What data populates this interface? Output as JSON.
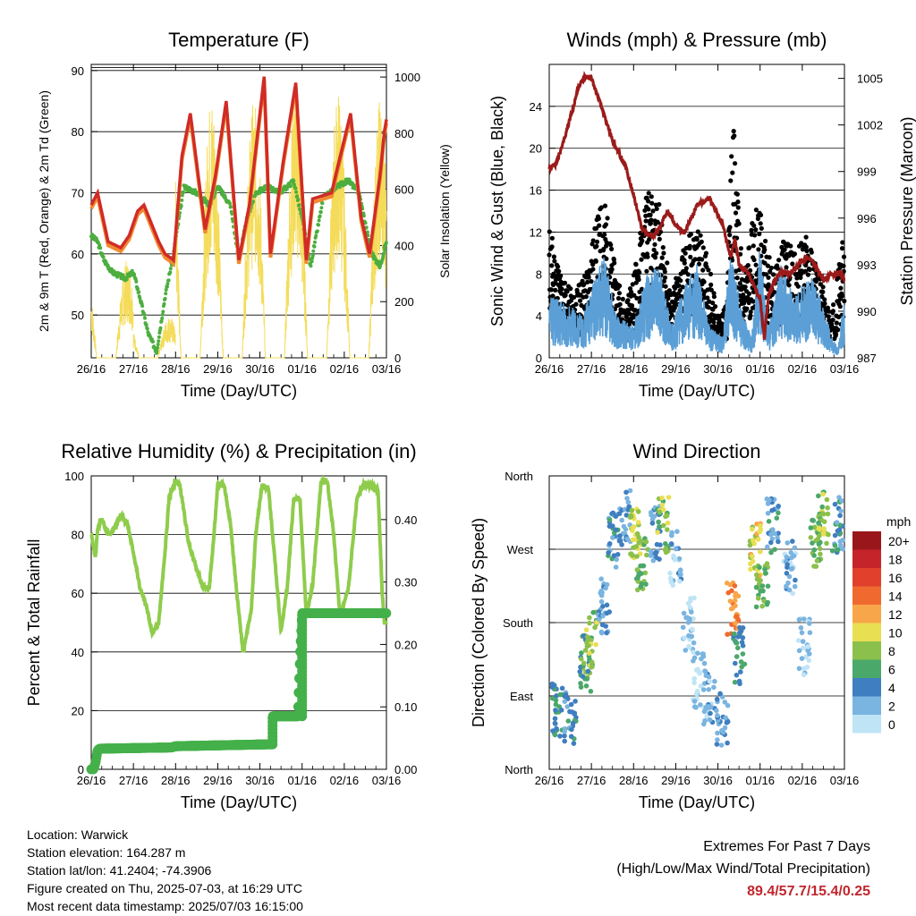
{
  "info": {
    "location": "Location: Warwick",
    "elevation": "Station elevation: 164.287 m",
    "latlon": "Station lat/lon: 41.2404; -74.3906",
    "created": "Figure created on Thu, 2025-07-03, at 16:29 UTC",
    "recent": "Most recent data timestamp: 2025/07/03 16:15:00"
  },
  "extremes": {
    "title": "Extremes For Past 7 Days",
    "subtitle": "(High/Low/Max Wind/Total Precipitation)",
    "values": "89.4/57.7/15.4/0.25",
    "color": "#c0262c"
  },
  "chart_data": [
    {
      "type": "line",
      "title": "Temperature (F)",
      "xlabel": "Time (Day/UTC)",
      "ylabel": "2m & 9m T (Red, Orange) & 2m Td (Green)",
      "y2label": "Solar Insolation (Yellow)",
      "x_ticks": [
        "26/16",
        "27/16",
        "28/16",
        "29/16",
        "30/16",
        "01/16",
        "02/16",
        "03/16"
      ],
      "xlim": [
        0,
        7
      ],
      "ylim": [
        43,
        91
      ],
      "y_ticks": [
        50,
        60,
        70,
        80,
        90
      ],
      "y2lim": [
        0,
        1045
      ],
      "y2_ticks": [
        0,
        200,
        400,
        600,
        800,
        1000
      ],
      "grid": true,
      "colors": {
        "temp": "#d12b26",
        "temp9m": "#f08a30",
        "dewpoint": "#4cae3f",
        "solar": "#f4dc5a"
      },
      "series": [
        {
          "name": "2m T",
          "x": [
            0,
            0.15,
            0.4,
            0.7,
            0.9,
            1.1,
            1.25,
            1.6,
            1.75,
            1.95,
            2.15,
            2.35,
            2.7,
            2.95,
            3.2,
            3.5,
            3.75,
            4.1,
            4.25,
            4.55,
            4.85,
            5.1,
            5.25,
            5.7,
            5.8,
            6.15,
            6.4,
            6.6,
            6.85,
            6.95,
            7.0
          ],
          "values": [
            68,
            70,
            62,
            61,
            63,
            67,
            68,
            62,
            60,
            59,
            76,
            83,
            64,
            73,
            85,
            59,
            68,
            89,
            60,
            75,
            88,
            59,
            69,
            70,
            73,
            83,
            66,
            60,
            73,
            80,
            82
          ]
        },
        {
          "name": "2m Td",
          "x": [
            0,
            0.15,
            0.3,
            0.5,
            0.8,
            1.0,
            1.15,
            1.35,
            1.55,
            1.75,
            1.95,
            2.2,
            2.5,
            2.8,
            3.0,
            3.3,
            3.5,
            3.7,
            3.9,
            4.2,
            4.45,
            4.65,
            4.8,
            5.05,
            5.2,
            5.5,
            5.8,
            6.1,
            6.35,
            6.65,
            6.85,
            7.0
          ],
          "values": [
            63,
            62,
            59,
            57,
            56,
            57,
            53,
            47,
            44,
            53,
            60,
            71,
            70,
            68,
            71,
            68,
            59,
            66,
            70,
            71,
            70,
            71,
            72,
            64,
            58,
            69,
            71,
            72,
            70,
            60,
            58,
            62
          ]
        },
        {
          "name": "Solar Insolation",
          "axis": "y2",
          "days": [
            0,
            1,
            2,
            3,
            4,
            5,
            6
          ],
          "peaks": [
            350,
            150,
            950,
            920,
            1000,
            960,
            930
          ]
        }
      ]
    },
    {
      "type": "scatter",
      "title": "Winds (mph) & Pressure (mb)",
      "xlabel": "Time (Day/UTC)",
      "ylabel": "Sonic Wind & Gust (Blue, Black)",
      "y2label": "Station Pressure (Maroon)",
      "x_ticks": [
        "26/16",
        "27/16",
        "28/16",
        "29/16",
        "30/16",
        "01/16",
        "02/16",
        "03/16"
      ],
      "xlim": [
        0,
        7
      ],
      "ylim": [
        0,
        28
      ],
      "y_ticks": [
        0,
        4,
        8,
        12,
        16,
        20,
        24
      ],
      "y2lim": [
        987,
        1005.9
      ],
      "y2_ticks": [
        987,
        990,
        993,
        996,
        999,
        1002,
        1005
      ],
      "grid": true,
      "colors": {
        "wind": "#5b9fd6",
        "gust": "#000000",
        "pressure": "#9b1b1b"
      },
      "series": [
        {
          "name": "Wind (blue)",
          "envelope_x": [
            0,
            0.5,
            0.8,
            1.0,
            1.3,
            1.6,
            2.0,
            2.3,
            2.6,
            2.9,
            3.2,
            3.5,
            3.8,
            4.1,
            4.3,
            4.6,
            4.8,
            5.0,
            5.2,
            5.5,
            5.8,
            6.0,
            6.2,
            6.5,
            6.7,
            6.85,
            7.0
          ],
          "values": [
            6,
            5,
            4,
            7,
            10,
            4,
            3,
            8,
            9,
            3,
            7,
            9,
            3,
            2,
            10,
            4,
            2,
            11,
            3,
            9,
            6,
            7,
            8,
            5,
            2,
            1,
            6
          ]
        },
        {
          "name": "Gust (black)",
          "envelope_x": [
            0,
            0.3,
            0.6,
            0.9,
            1.1,
            1.3,
            1.5,
            1.8,
            2.0,
            2.3,
            2.6,
            2.9,
            3.2,
            3.5,
            3.8,
            4.0,
            4.2,
            4.35,
            4.6,
            4.85,
            5.0,
            5.3,
            5.6,
            5.8,
            6.1,
            6.4,
            6.7,
            6.9,
            7.0
          ],
          "values": [
            13,
            8,
            6,
            9,
            13,
            16,
            10,
            5,
            8,
            16,
            15,
            6,
            11,
            13,
            9,
            4,
            5,
            24,
            7,
            15,
            14,
            8,
            12,
            10,
            12,
            8,
            4,
            10,
            12
          ]
        },
        {
          "name": "Pressure (maroon)",
          "axis": "y2",
          "x": [
            0,
            0.15,
            0.3,
            0.5,
            0.7,
            0.85,
            1.0,
            1.2,
            1.5,
            1.8,
            2.0,
            2.2,
            2.45,
            2.6,
            2.8,
            3.0,
            3.2,
            3.5,
            3.8,
            4.1,
            4.3,
            4.4,
            4.5,
            4.7,
            4.9,
            5.0,
            5.1,
            5.2,
            5.35,
            5.5,
            5.7,
            5.9,
            6.1,
            6.3,
            6.5,
            6.7,
            6.9,
            7.0
          ],
          "values": [
            999.2,
            999.5,
            1000.5,
            1002.5,
            1004.5,
            1005.1,
            1005,
            1003.5,
            1001,
            999.4,
            997.5,
            995.3,
            994.8,
            995.3,
            996.5,
            995.5,
            995,
            996.8,
            997.3,
            995.7,
            993.5,
            994.7,
            993,
            992.5,
            991.4,
            990.8,
            988.3,
            991,
            992,
            992.5,
            992.4,
            993,
            993.5,
            993,
            992,
            992.4,
            992.5,
            992
          ]
        }
      ]
    },
    {
      "type": "line",
      "title": "Relative Humidity (%) & Precipitation (in)",
      "xlabel": "Time (Day/UTC)",
      "ylabel": "Percent & Total Rainfall",
      "x_ticks": [
        "26/16",
        "27/16",
        "28/16",
        "29/16",
        "30/16",
        "01/16",
        "02/16",
        "03/16"
      ],
      "xlim": [
        0,
        7
      ],
      "ylim": [
        0,
        100
      ],
      "y_ticks": [
        0,
        20,
        40,
        60,
        80,
        100
      ],
      "y2lim": [
        0,
        0.47
      ],
      "y2_ticks": [
        "0.00",
        "0.10",
        "0.20",
        "0.30",
        "0.40"
      ],
      "grid": true,
      "colors": {
        "rh": "#8fcc4c",
        "precip": "#44b04a"
      },
      "series": [
        {
          "name": "Relative Humidity",
          "x": [
            0,
            0.1,
            0.15,
            0.25,
            0.4,
            0.55,
            0.7,
            0.85,
            1.0,
            1.15,
            1.3,
            1.45,
            1.6,
            1.75,
            1.85,
            2.0,
            2.1,
            2.3,
            2.5,
            2.65,
            2.8,
            2.9,
            3.0,
            3.15,
            3.3,
            3.45,
            3.6,
            3.8,
            3.9,
            4.05,
            4.2,
            4.35,
            4.5,
            4.65,
            4.8,
            4.95,
            5.1,
            5.25,
            5.45,
            5.6,
            5.75,
            5.9,
            6.1,
            6.3,
            6.45,
            6.6,
            6.8,
            6.9,
            6.95,
            7.0
          ],
          "values": [
            80,
            72,
            82,
            85,
            80,
            82,
            87,
            84,
            74,
            62,
            56,
            46,
            50,
            74,
            93,
            98,
            97,
            78,
            68,
            62,
            62,
            78,
            97,
            97,
            84,
            60,
            40,
            55,
            80,
            97,
            96,
            72,
            47,
            62,
            92,
            92,
            52,
            63,
            98,
            98,
            80,
            52,
            62,
            92,
            97,
            97,
            95,
            60,
            50,
            50
          ]
        },
        {
          "name": "Total Rainfall",
          "axis": "y2",
          "x": [
            0,
            0.05,
            0.1,
            0.15,
            0.2,
            1.9,
            2.0,
            4.2,
            4.3,
            4.3,
            4.9,
            4.95,
            5.0,
            5.05,
            7.0
          ],
          "values": [
            0,
            0,
            0.01,
            0.03,
            0.033,
            0.035,
            0.037,
            0.04,
            0.04,
            0.085,
            0.085,
            0.18,
            0.25,
            0.25,
            0.25
          ]
        }
      ]
    },
    {
      "type": "scatter",
      "title": "Wind Direction",
      "xlabel": "Time (Day/UTC)",
      "ylabel": "Direction (Colored By Speed)",
      "x_ticks": [
        "26/16",
        "27/16",
        "28/16",
        "29/16",
        "30/16",
        "01/16",
        "02/16",
        "03/16"
      ],
      "xlim": [
        0,
        7
      ],
      "ylim": [
        0,
        360
      ],
      "y_ticks": [
        "North",
        "East",
        "South",
        "West",
        "North"
      ],
      "grid": true,
      "legend": {
        "title": "mph",
        "placement": "right",
        "labels": [
          "20+",
          "18",
          "16",
          "14",
          "12",
          "10",
          "8",
          "6",
          "4",
          "2",
          "0"
        ],
        "colors": [
          "#99171b",
          "#c5252a",
          "#e0402c",
          "#f06a2f",
          "#f8a64a",
          "#e9df53",
          "#8cc04c",
          "#4aa86a",
          "#3f7ec0",
          "#7ab4e0",
          "#bfe4f6"
        ]
      },
      "series": [
        {
          "name": "direction clusters",
          "x": [
            0.2,
            0.5,
            0.85,
            1.0,
            1.3,
            1.5,
            1.8,
            2.05,
            2.2,
            2.5,
            2.7,
            3.0,
            3.3,
            3.55,
            3.8,
            4.1,
            4.35,
            4.5,
            4.9,
            5.05,
            5.3,
            5.7,
            6.05,
            6.3,
            6.5,
            6.85
          ],
          "values": [
            70,
            60,
            130,
            160,
            200,
            280,
            310,
            290,
            250,
            290,
            300,
            260,
            180,
            110,
            90,
            60,
            200,
            140,
            270,
            230,
            300,
            250,
            150,
            280,
            310,
            300
          ],
          "speeds": [
            5,
            4,
            6,
            8,
            3,
            4,
            3,
            9,
            7,
            3,
            8,
            2,
            1,
            1,
            2,
            3,
            13,
            5,
            10,
            7,
            4,
            2,
            1,
            7,
            8,
            4
          ]
        }
      ]
    }
  ]
}
